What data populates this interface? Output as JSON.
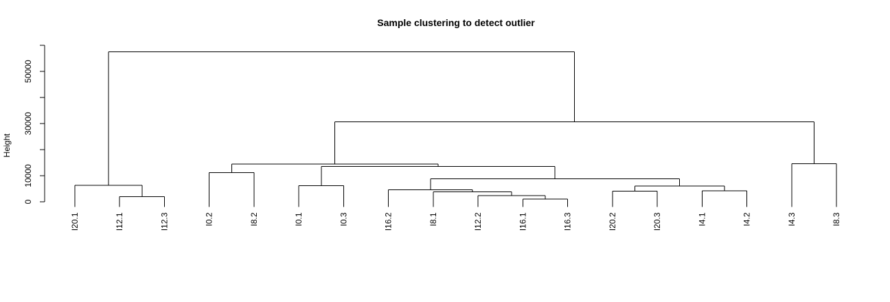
{
  "chart_data": {
    "type": "dendrogram",
    "title": "Sample clustering to detect outlier",
    "ylabel": "Height",
    "xlabel": "",
    "ylim": [
      0,
      60000
    ],
    "y_ticks": [
      0,
      10000,
      20000,
      30000,
      40000,
      50000,
      60000
    ],
    "y_tick_labels": [
      "0",
      "10000",
      "",
      "30000",
      "",
      "50000",
      ""
    ],
    "leaves": [
      "I20.1",
      "I12.1",
      "I12.3",
      "I0.2",
      "I8.2",
      "I0.1",
      "I0.3",
      "I16.2",
      "I8.1",
      "I12.2",
      "I16.1",
      "I16.3",
      "I20.2",
      "I20.3",
      "I4.1",
      "I4.2",
      "I4.3",
      "I8.3"
    ],
    "leaf_hang_height": -2000,
    "merges": [
      {
        "left": "I16.1",
        "right": "I16.3",
        "height": 1100
      },
      {
        "left": "I12.1",
        "right": "I12.3",
        "height": 2000
      },
      {
        "left": "I12.2",
        "right": {
          "merge": 0
        },
        "height": 2400
      },
      {
        "left": "I20.2",
        "right": "I20.3",
        "height": 4100
      },
      {
        "left": "I4.1",
        "right": "I4.2",
        "height": 4200
      },
      {
        "left": "I8.1",
        "right": {
          "merge": 2
        },
        "height": 3800
      },
      {
        "left": "I16.2",
        "right": {
          "merge": 5
        },
        "height": 4600
      },
      {
        "left": {
          "merge": 3
        },
        "right": {
          "merge": 4
        },
        "height": 6000
      },
      {
        "left": "I0.1",
        "right": "I0.3",
        "height": 6200
      },
      {
        "left": "I20.1",
        "right": {
          "merge": 1
        },
        "height": 6300
      },
      {
        "left": {
          "merge": 6
        },
        "right": {
          "merge": 7
        },
        "height": 8800
      },
      {
        "left": "I0.2",
        "right": "I8.2",
        "height": 11200
      },
      {
        "left": {
          "merge": 8
        },
        "right": {
          "merge": 10
        },
        "height": 13600
      },
      {
        "left": {
          "merge": 11
        },
        "right": {
          "merge": 12
        },
        "height": 14500
      },
      {
        "left": "I4.3",
        "right": "I8.3",
        "height": 14600
      },
      {
        "left": {
          "merge": 13
        },
        "right": {
          "merge": 14
        },
        "height": 30600
      },
      {
        "left": {
          "merge": 9
        },
        "right": {
          "merge": 15
        },
        "height": 57500
      }
    ]
  }
}
